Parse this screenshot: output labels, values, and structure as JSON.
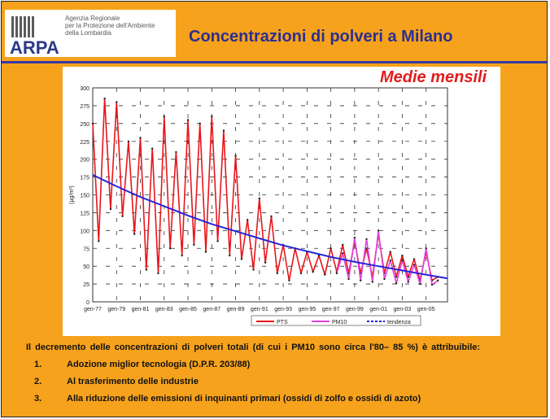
{
  "header": {
    "logo": "ARPA",
    "agency_lines": [
      "Agenzia Regionale",
      "per la Protezione dell'Ambiente",
      "della Lombardia"
    ],
    "title": "Concentrazioni di polveri a Milano"
  },
  "chart_data": {
    "type": "line",
    "subtitle": "Medie mensili",
    "ylabel": "(µg/m³)",
    "ylim": [
      0,
      300
    ],
    "yticks": [
      0,
      25,
      50,
      75,
      100,
      125,
      150,
      175,
      200,
      225,
      250,
      275,
      300
    ],
    "xticks": [
      "gen-77",
      "gen-79",
      "gen-81",
      "gen-83",
      "gen-85",
      "gen-87",
      "gen-89",
      "gen-91",
      "gen-93",
      "gen-95",
      "gen-97",
      "gen-99",
      "gen-01",
      "gen-03",
      "gen-05"
    ],
    "xlim": [
      1977.0,
      2006.8
    ],
    "grid": true,
    "legend_position": "bottom-right",
    "series": [
      {
        "name": "PTS",
        "color": "#e8161b",
        "x": [
          1977.0,
          1977.5,
          1978.0,
          1978.5,
          1979.0,
          1979.5,
          1980.0,
          1980.5,
          1981.0,
          1981.5,
          1982.0,
          1982.5,
          1983.0,
          1983.5,
          1984.0,
          1984.5,
          1985.0,
          1985.5,
          1986.0,
          1986.5,
          1987.0,
          1987.5,
          1988.0,
          1988.5,
          1989.0,
          1989.5,
          1990.0,
          1990.5,
          1991.0,
          1991.5,
          1992.0,
          1992.5,
          1993.0,
          1993.5,
          1994.0,
          1994.5,
          1995.0,
          1995.5,
          1996.0,
          1996.5,
          1997.0,
          1997.5,
          1998.0,
          1998.5,
          1999.0,
          1999.5,
          2000.0,
          2000.5,
          2001.0,
          2001.5,
          2002.0,
          2002.5,
          2003.0,
          2003.5,
          2004.0,
          2004.5,
          2005.0,
          2005.5,
          2006.0
        ],
        "values": [
          250,
          85,
          285,
          130,
          280,
          120,
          225,
          95,
          230,
          45,
          215,
          40,
          260,
          75,
          210,
          65,
          255,
          80,
          250,
          70,
          260,
          85,
          240,
          65,
          205,
          60,
          115,
          45,
          145,
          55,
          120,
          40,
          80,
          30,
          75,
          40,
          70,
          42,
          65,
          38,
          75,
          42,
          80,
          40,
          85,
          40,
          75,
          35,
          95,
          40,
          70,
          35,
          65,
          35,
          60,
          30,
          70,
          30,
          35
        ]
      },
      {
        "name": "PM10",
        "color": "#e040e0",
        "x": [
          1997.5,
          1998.0,
          1998.5,
          1999.0,
          1999.5,
          2000.0,
          2000.5,
          2001.0,
          2001.5,
          2002.0,
          2002.5,
          2003.0,
          2003.5,
          2004.0,
          2004.5,
          2005.0,
          2005.5,
          2006.0
        ],
        "values": [
          40,
          68,
          32,
          90,
          30,
          88,
          28,
          100,
          32,
          58,
          26,
          58,
          28,
          52,
          25,
          75,
          24,
          30
        ]
      },
      {
        "name": "tendenza",
        "color": "#2424d8",
        "x": [
          1977.0,
          1979.0,
          1981.0,
          1983.0,
          1985.0,
          1987.0,
          1989.0,
          1991.0,
          1993.0,
          1995.0,
          1997.0,
          1999.0,
          2001.0,
          2003.0,
          2005.0,
          2006.8
        ],
        "values": [
          178,
          162,
          147,
          134,
          121,
          109,
          99,
          89,
          79,
          71,
          63,
          56,
          50,
          44,
          38,
          33
        ]
      }
    ]
  },
  "text": {
    "intro": "Il decremento delle concentrazioni di polveri totali (di cui i PM10 sono circa l'80– 85 %) è attribuibile:",
    "items": [
      {
        "num": "1.",
        "label": "Adozione miglior tecnologia (D.P.R. 203/88)"
      },
      {
        "num": "2.",
        "label": "Al trasferimento delle industrie"
      },
      {
        "num": "3.",
        "label": "Alla riduzione delle emissioni di inquinanti primari (ossidi di zolfo e ossidi di azoto)"
      }
    ]
  }
}
